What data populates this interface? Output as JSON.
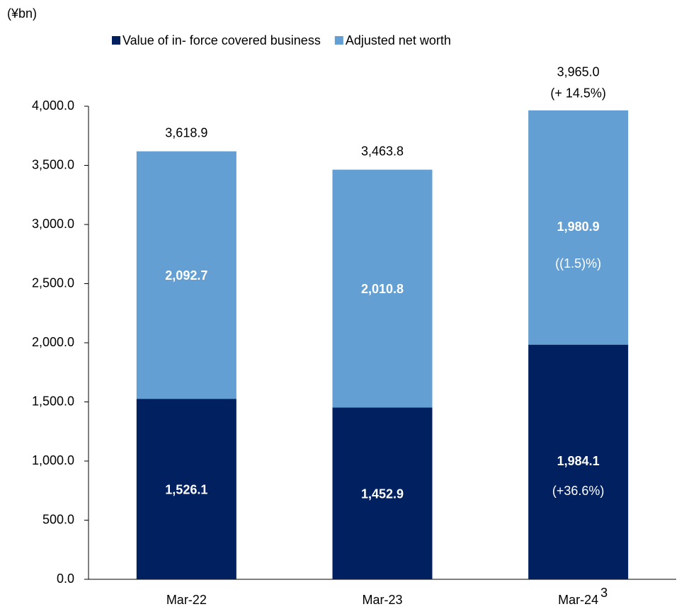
{
  "chart_data": {
    "type": "stacked_bar",
    "y_unit_label": "(¥bn)",
    "categories": [
      "Mar-22",
      "Mar-23",
      "Mar-24"
    ],
    "category_superscripts": [
      null,
      null,
      "3"
    ],
    "series": [
      {
        "name": "Value of  in- force covered business",
        "color": "#002060",
        "values": [
          1526.1,
          1452.9,
          1984.1
        ],
        "value_labels": [
          "1,526.1",
          "1,452.9",
          "1,984.1"
        ],
        "change_labels": [
          null,
          null,
          "(+36.6%)"
        ]
      },
      {
        "name": "Adjusted net worth",
        "color": "#639fd3",
        "values": [
          2092.7,
          2010.8,
          1980.9
        ],
        "value_labels": [
          "2,092.7",
          "2,010.8",
          "1,980.9"
        ],
        "change_labels": [
          null,
          null,
          "((1.5)%)"
        ]
      }
    ],
    "totals": [
      3618.9,
      3463.8,
      3965.0
    ],
    "total_labels": [
      "3,618.9",
      "3,463.8",
      "3,965.0"
    ],
    "total_change_labels": [
      null,
      null,
      "(+ 14.5%)"
    ],
    "ylim": [
      0,
      4000
    ],
    "yticks": [
      {
        "value": 0,
        "label": "0.0"
      },
      {
        "value": 500,
        "label": "500.0"
      },
      {
        "value": 1000,
        "label": "1,000.0"
      },
      {
        "value": 1500,
        "label": "1,500.0"
      },
      {
        "value": 2000,
        "label": "2,000.0"
      },
      {
        "value": 2500,
        "label": "2,500.0"
      },
      {
        "value": 3000,
        "label": "3,000.0"
      },
      {
        "value": 3500,
        "label": "3,500.0"
      },
      {
        "value": 4000,
        "label": "4,000.0"
      }
    ],
    "grid": false,
    "legend": "top"
  }
}
